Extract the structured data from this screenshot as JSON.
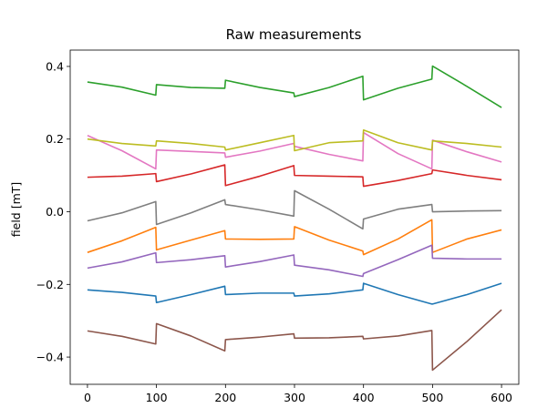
{
  "chart_data": {
    "type": "line",
    "title": "Raw measurements",
    "xlabel": "",
    "ylabel": "field [mT]",
    "xlim": [
      -25,
      625
    ],
    "ylim": [
      -0.475,
      0.445
    ],
    "xticks": [
      0,
      100,
      200,
      300,
      400,
      500,
      600
    ],
    "xtick_labels": [
      "0",
      "100",
      "200",
      "300",
      "400",
      "500",
      "600"
    ],
    "yticks": [
      -0.4,
      -0.2,
      0.0,
      0.2,
      0.4
    ],
    "ytick_labels": [
      "−0.4",
      "−0.2",
      "0.0",
      "0.2",
      "0.4"
    ],
    "grid": false,
    "legend": "none",
    "series": [
      {
        "color": "#1f77b4",
        "x": [
          0,
          50,
          99,
          100,
          150,
          199,
          200,
          250,
          299,
          300,
          350,
          399,
          400,
          450,
          499,
          500,
          550,
          600
        ],
        "y": [
          -0.215,
          -0.222,
          -0.232,
          -0.25,
          -0.228,
          -0.205,
          -0.228,
          -0.224,
          -0.224,
          -0.232,
          -0.226,
          -0.215,
          -0.197,
          -0.228,
          -0.254,
          -0.254,
          -0.228,
          -0.197
        ]
      },
      {
        "color": "#ff7f0e",
        "x": [
          0,
          50,
          99,
          100,
          150,
          199,
          200,
          250,
          299,
          300,
          350,
          399,
          400,
          450,
          499,
          500,
          550,
          600
        ],
        "y": [
          -0.112,
          -0.08,
          -0.043,
          -0.105,
          -0.078,
          -0.052,
          -0.075,
          -0.076,
          -0.075,
          -0.041,
          -0.078,
          -0.108,
          -0.118,
          -0.075,
          -0.022,
          -0.112,
          -0.075,
          -0.05
        ]
      },
      {
        "color": "#2ca02c",
        "x": [
          0,
          50,
          99,
          100,
          150,
          199,
          200,
          250,
          299,
          300,
          350,
          399,
          400,
          450,
          499,
          500,
          550,
          600
        ],
        "y": [
          0.357,
          0.343,
          0.321,
          0.35,
          0.342,
          0.34,
          0.362,
          0.342,
          0.327,
          0.317,
          0.342,
          0.373,
          0.308,
          0.34,
          0.365,
          0.401,
          0.345,
          0.287
        ]
      },
      {
        "color": "#d62728",
        "x": [
          0,
          50,
          99,
          100,
          150,
          199,
          200,
          250,
          299,
          300,
          350,
          399,
          400,
          450,
          499,
          500,
          550,
          600
        ],
        "y": [
          0.095,
          0.098,
          0.105,
          0.083,
          0.104,
          0.129,
          0.072,
          0.098,
          0.127,
          0.1,
          0.098,
          0.096,
          0.07,
          0.086,
          0.105,
          0.115,
          0.1,
          0.088
        ]
      },
      {
        "color": "#9467bd",
        "x": [
          0,
          50,
          99,
          100,
          150,
          199,
          200,
          250,
          299,
          300,
          350,
          399,
          400,
          450,
          499,
          500,
          550,
          600
        ],
        "y": [
          -0.155,
          -0.138,
          -0.113,
          -0.14,
          -0.132,
          -0.121,
          -0.152,
          -0.137,
          -0.119,
          -0.147,
          -0.16,
          -0.178,
          -0.17,
          -0.132,
          -0.092,
          -0.128,
          -0.13,
          -0.13
        ]
      },
      {
        "color": "#8c564b",
        "x": [
          0,
          50,
          99,
          100,
          150,
          199,
          200,
          250,
          299,
          300,
          350,
          399,
          400,
          450,
          499,
          500,
          550,
          600
        ],
        "y": [
          -0.328,
          -0.343,
          -0.364,
          -0.308,
          -0.342,
          -0.383,
          -0.352,
          -0.345,
          -0.336,
          -0.348,
          -0.347,
          -0.343,
          -0.35,
          -0.342,
          -0.327,
          -0.436,
          -0.357,
          -0.27
        ]
      },
      {
        "color": "#e377c2",
        "x": [
          0,
          50,
          99,
          100,
          150,
          199,
          200,
          250,
          299,
          300,
          350,
          399,
          400,
          450,
          499,
          500,
          550,
          600
        ],
        "y": [
          0.21,
          0.168,
          0.118,
          0.17,
          0.166,
          0.162,
          0.15,
          0.167,
          0.188,
          0.18,
          0.158,
          0.14,
          0.218,
          0.16,
          0.118,
          0.197,
          0.165,
          0.137
        ]
      },
      {
        "color": "#7f7f7f",
        "x": [
          0,
          50,
          99,
          100,
          150,
          199,
          200,
          250,
          299,
          300,
          350,
          399,
          400,
          450,
          499,
          500,
          550,
          600
        ],
        "y": [
          -0.025,
          -0.003,
          0.028,
          -0.035,
          -0.003,
          0.033,
          0.02,
          0.005,
          -0.012,
          0.058,
          0.007,
          -0.047,
          -0.02,
          0.007,
          0.02,
          0.0,
          0.002,
          0.003
        ]
      },
      {
        "color": "#bcbd22",
        "x": [
          0,
          50,
          99,
          100,
          150,
          199,
          200,
          250,
          299,
          300,
          350,
          399,
          400,
          450,
          499,
          500,
          550,
          600
        ],
        "y": [
          0.2,
          0.188,
          0.181,
          0.195,
          0.188,
          0.178,
          0.17,
          0.19,
          0.21,
          0.168,
          0.19,
          0.195,
          0.225,
          0.19,
          0.17,
          0.195,
          0.188,
          0.178
        ]
      }
    ]
  }
}
